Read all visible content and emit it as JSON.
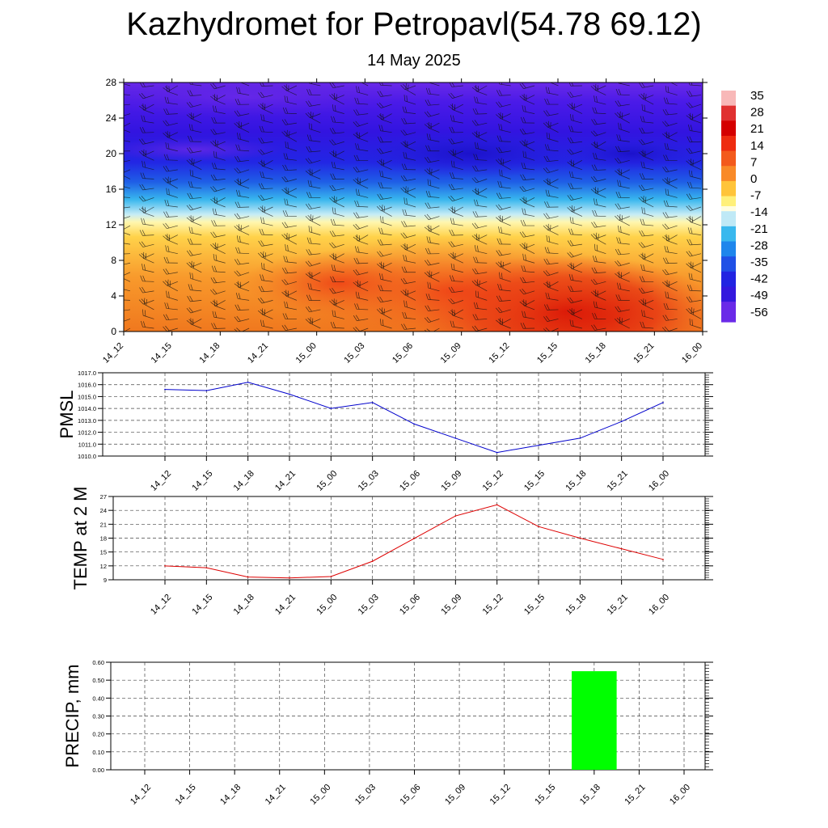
{
  "title": "Kazhydromet for Petropavl(54.78 69.12)",
  "subtitle": "14 May 2025",
  "colors": {
    "pmsl_line": "#0000cc",
    "temp_line": "#dd0000",
    "precip_bar": "#00ff00",
    "grid": "#555555"
  },
  "chart_data": [
    {
      "type": "heatmap",
      "name": "vertical cross-section",
      "x_labels": [
        "14_12",
        "14_15",
        "14_18",
        "14_21",
        "15_00",
        "15_03",
        "15_06",
        "15_09",
        "15_12",
        "15_15",
        "15_18",
        "15_21",
        "16_00"
      ],
      "y_ticks": [
        0,
        4,
        8,
        12,
        16,
        20,
        24,
        28
      ],
      "ylim": [
        0,
        28
      ],
      "colorbar": {
        "labels": [
          "35",
          "28",
          "21",
          "14",
          "7",
          "0",
          "-7",
          "-14",
          "-21",
          "-28",
          "-35",
          "-42",
          "-49",
          "-56"
        ],
        "range": [
          -60,
          37
        ]
      },
      "wind_barbs": true
    },
    {
      "type": "line",
      "ylabel": "PMSL",
      "x": [
        "14_12",
        "14_15",
        "14_18",
        "14_21",
        "15_00",
        "15_03",
        "15_06",
        "15_09",
        "15_12",
        "15_15",
        "15_18",
        "15_21",
        "16_00"
      ],
      "values": [
        1015.6,
        1015.5,
        1016.2,
        1015.2,
        1014.0,
        1014.5,
        1012.7,
        1011.5,
        1010.3,
        1010.9,
        1011.5,
        1012.9,
        1014.5
      ],
      "ylim": [
        1010.0,
        1017.0
      ],
      "y_ticks": [
        "1010.0",
        "1011.0",
        "1012.0",
        "1013.0",
        "1014.0",
        "1015.0",
        "1016.0",
        "1017.0"
      ],
      "grid": true
    },
    {
      "type": "line",
      "ylabel": "TEMP at 2 M",
      "x": [
        "14_12",
        "14_15",
        "14_18",
        "14_21",
        "15_00",
        "15_03",
        "15_06",
        "15_09",
        "15_12",
        "15_15",
        "15_18",
        "15_21",
        "16_00"
      ],
      "values": [
        12.0,
        11.6,
        9.6,
        9.4,
        9.7,
        13.0,
        17.9,
        22.8,
        25.2,
        20.5,
        18.0,
        15.7,
        13.4
      ],
      "ylim": [
        9,
        27
      ],
      "y_ticks": [
        "9",
        "12",
        "15",
        "18",
        "21",
        "24",
        "27"
      ],
      "grid": true
    },
    {
      "type": "bar",
      "ylabel": "PRECIP, mm",
      "categories": [
        "14_12",
        "14_15",
        "14_18",
        "14_21",
        "15_00",
        "15_03",
        "15_06",
        "15_09",
        "15_12",
        "15_15",
        "15_18",
        "15_21",
        "16_00"
      ],
      "values": [
        0,
        0,
        0,
        0,
        0,
        0,
        0,
        0,
        0,
        0,
        0.55,
        0,
        0
      ],
      "ylim": [
        0,
        0.6
      ],
      "y_ticks": [
        "0.00",
        "0.10",
        "0.20",
        "0.30",
        "0.40",
        "0.50",
        "0.60"
      ],
      "grid": true
    }
  ]
}
